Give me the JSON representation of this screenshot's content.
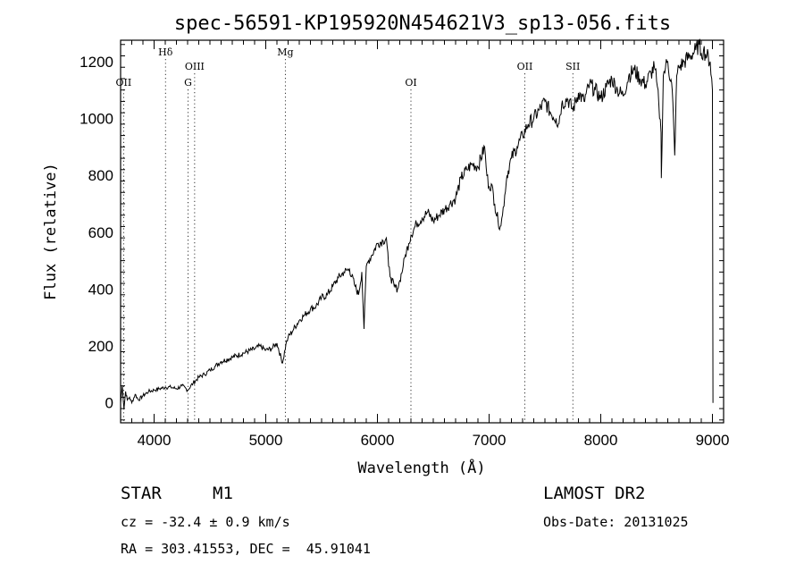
{
  "chart_data": {
    "type": "line",
    "title": "spec-56591-KP195920N454621V3_sp13-056.fits",
    "xlabel": "Wavelength (Å)",
    "ylabel": "Flux (relative)",
    "xlim": [
      3700,
      9100
    ],
    "ylim": [
      -70,
      1275
    ],
    "xticks": [
      4000,
      5000,
      6000,
      7000,
      8000,
      9000
    ],
    "yticks": [
      0,
      200,
      400,
      600,
      800,
      1000,
      1200
    ],
    "grid": false,
    "series": [
      {
        "x": [
          3700,
          3715,
          3730,
          3745,
          3760,
          3780,
          3800,
          3830,
          3860,
          3900,
          3950,
          4000,
          4050,
          4100,
          4150,
          4200,
          4250,
          4300,
          4350,
          4400,
          4450,
          4500,
          4550,
          4600,
          4700,
          4800,
          4900,
          4950,
          5000,
          5050,
          5100,
          5150,
          5180,
          5200,
          5250,
          5300,
          5350,
          5400,
          5450,
          5500,
          5550,
          5600,
          5650,
          5700,
          5750,
          5800,
          5830,
          5860,
          5880,
          5900,
          5920,
          5950,
          6000,
          6050,
          6080,
          6100,
          6120,
          6150,
          6180,
          6200,
          6230,
          6250,
          6280,
          6300,
          6350,
          6400,
          6450,
          6500,
          6550,
          6600,
          6650,
          6700,
          6750,
          6800,
          6850,
          6900,
          6960,
          6980,
          7000,
          7020,
          7050,
          7080,
          7100,
          7120,
          7140,
          7160,
          7200,
          7250,
          7300,
          7350,
          7400,
          7450,
          7500,
          7550,
          7600,
          7620,
          7650,
          7700,
          7750,
          7800,
          7850,
          7900,
          7950,
          8000,
          8050,
          8100,
          8150,
          8200,
          8250,
          8300,
          8350,
          8400,
          8450,
          8480,
          8500,
          8520,
          8540,
          8542,
          8560,
          8580,
          8600,
          8640,
          8662,
          8680,
          8700,
          8750,
          8800,
          8850,
          8880,
          8900,
          8920,
          8950,
          8980,
          9000,
          9005
        ],
        "y": [
          0,
          60,
          -20,
          40,
          10,
          20,
          0,
          30,
          10,
          25,
          40,
          45,
          50,
          55,
          55,
          50,
          60,
          45,
          70,
          90,
          100,
          115,
          130,
          145,
          160,
          175,
          190,
          200,
          185,
          190,
          210,
          140,
          205,
          230,
          260,
          290,
          310,
          330,
          340,
          370,
          380,
          410,
          440,
          460,
          470,
          410,
          380,
          460,
          260,
          480,
          500,
          520,
          560,
          570,
          580,
          480,
          440,
          410,
          400,
          430,
          480,
          520,
          560,
          590,
          630,
          650,
          670,
          640,
          660,
          680,
          700,
          720,
          790,
          820,
          840,
          830,
          900,
          800,
          760,
          770,
          700,
          640,
          620,
          660,
          730,
          800,
          860,
          900,
          940,
          980,
          1000,
          1030,
          1060,
          1020,
          1000,
          980,
          1050,
          1070,
          1030,
          1090,
          1060,
          1120,
          1100,
          1070,
          1110,
          1140,
          1100,
          1080,
          1150,
          1170,
          1140,
          1120,
          1160,
          1180,
          1130,
          1050,
          950,
          790,
          1150,
          1180,
          1200,
          1100,
          870,
          1150,
          1180,
          1200,
          1220,
          1240,
          1260,
          1230,
          1240,
          1220,
          1200,
          1100,
          0
        ]
      }
    ],
    "lines": [
      {
        "label": "OII",
        "x": 3727,
        "row": 3
      },
      {
        "label": "Hδ",
        "x": 4102,
        "row": 1
      },
      {
        "label": "OIII",
        "x": 4363,
        "row": 2
      },
      {
        "label": "G",
        "x": 4304,
        "row": 3
      },
      {
        "label": "Mg",
        "x": 5175,
        "row": 1
      },
      {
        "label": "OI",
        "x": 6300,
        "row": 3
      },
      {
        "label": "OII",
        "x": 7320,
        "row": 2
      },
      {
        "label": "SII",
        "x": 7750,
        "row": 2
      }
    ]
  },
  "info": {
    "class": "STAR",
    "subclass": "M1",
    "survey": "LAMOST DR2",
    "cz": "cz = -32.4 ± 0.9 km/s",
    "obs_date": "Obs-Date: 20131025",
    "radec": "RA = 303.41553, DEC =  45.91041"
  }
}
